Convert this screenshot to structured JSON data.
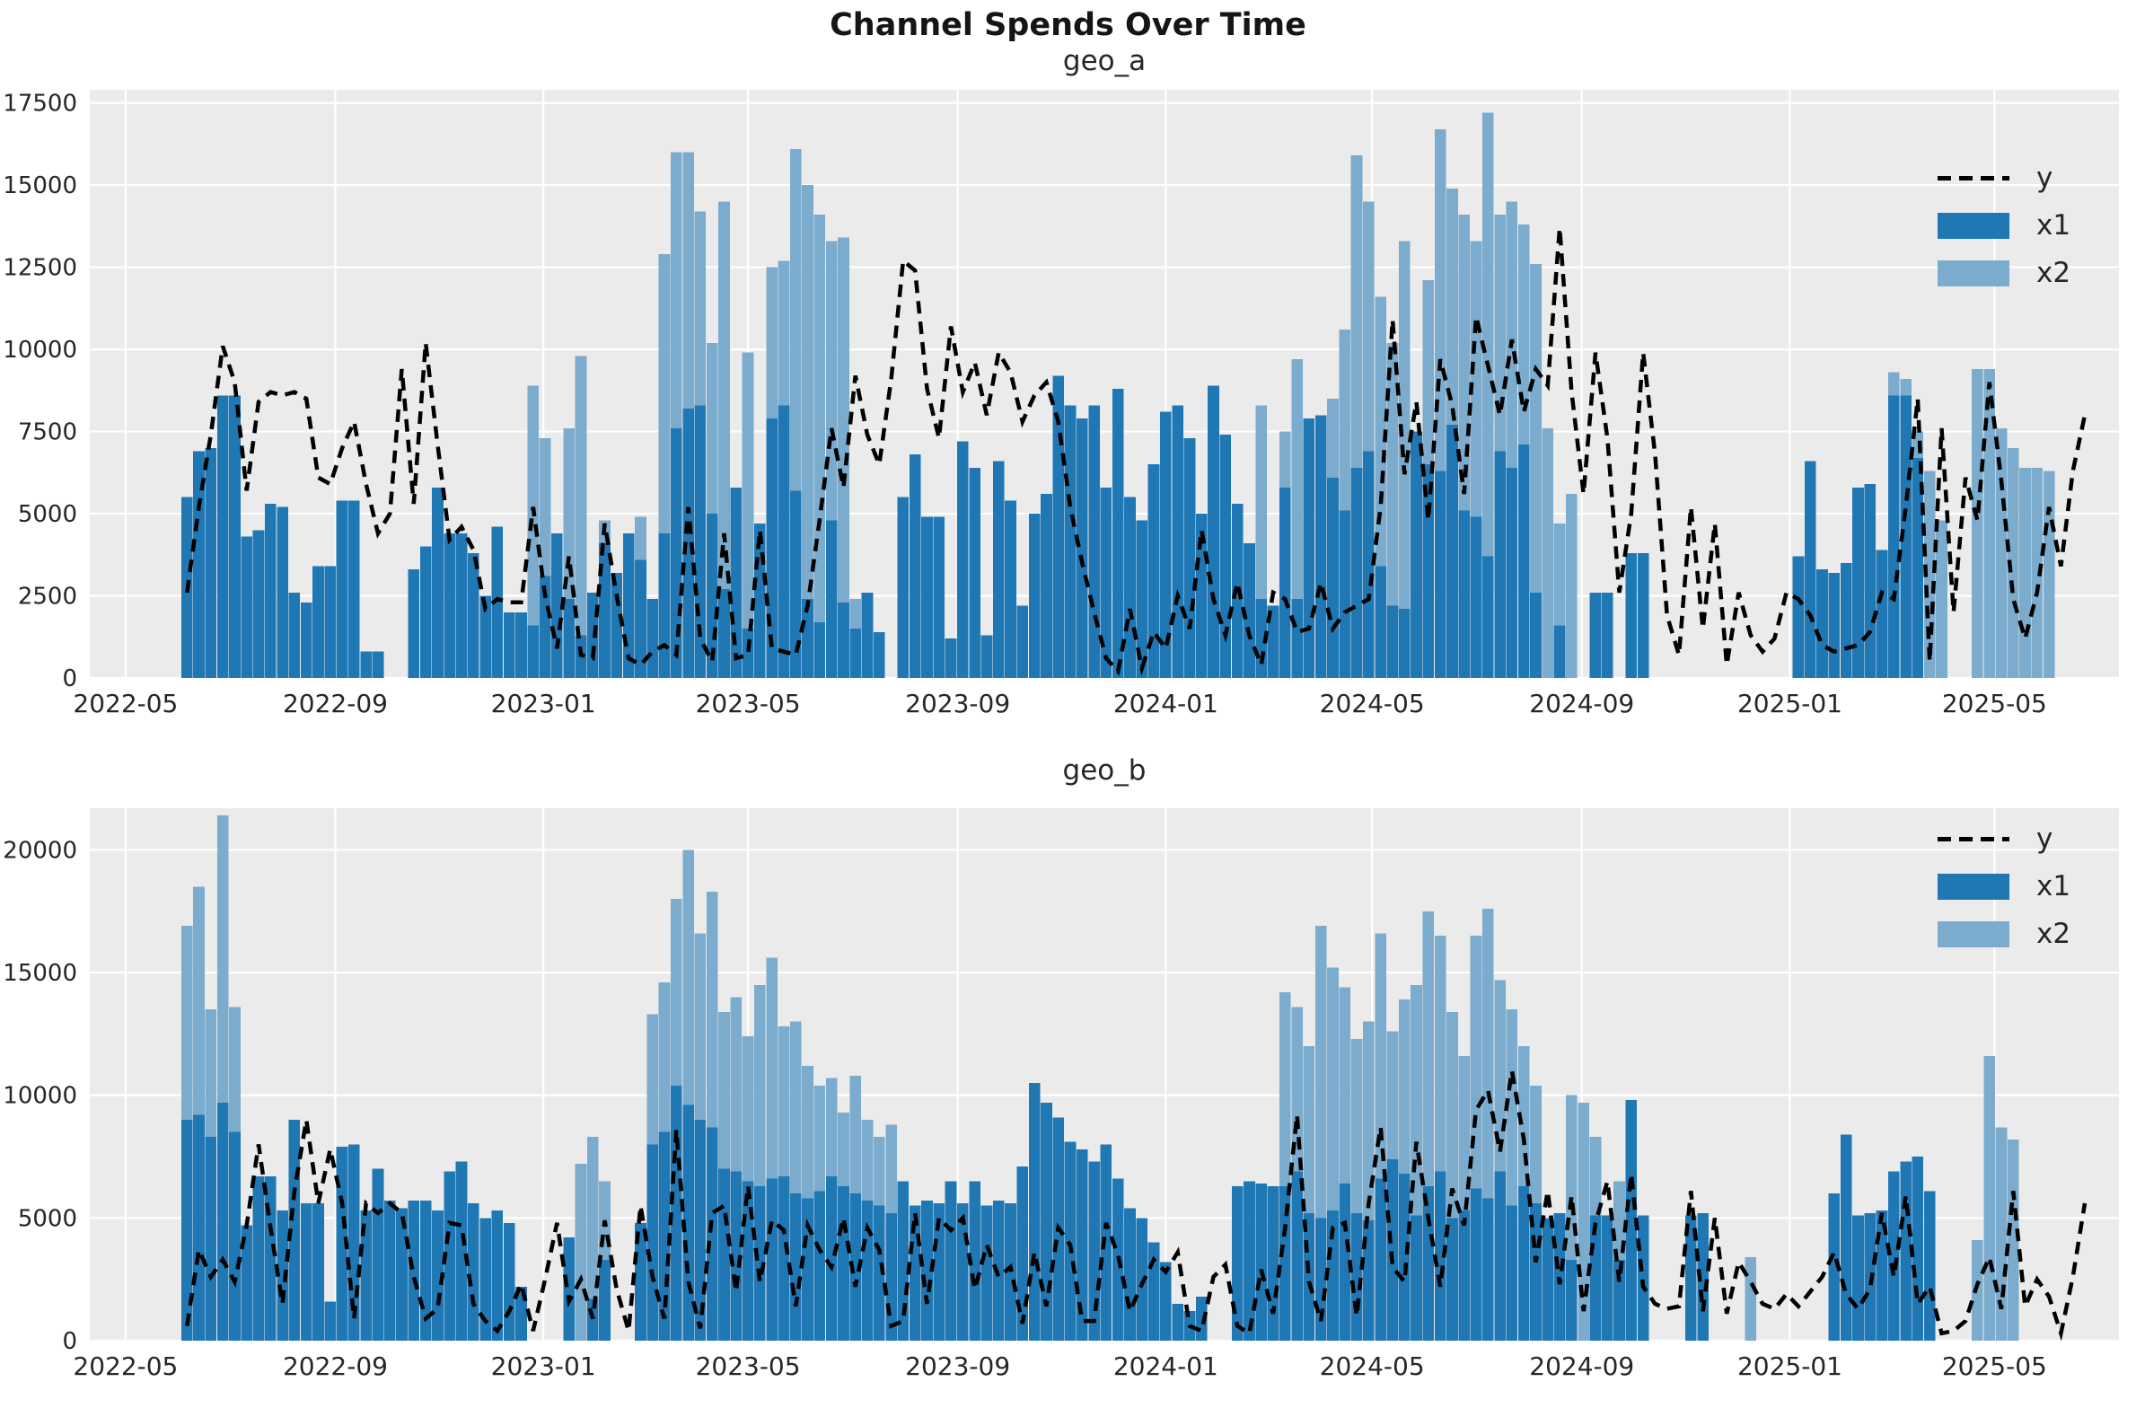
{
  "figure": {
    "title": "Channel Spends Over Time"
  },
  "colors": {
    "x1": "#1f77b4",
    "x2": "#7babcd",
    "line": "#000000",
    "plot_bg": "#ebebeb",
    "grid": "#ffffff",
    "tick_text": "#262626"
  },
  "legend": {
    "entries": [
      {
        "label": "y",
        "type": "line"
      },
      {
        "label": "x1",
        "type": "swatch"
      },
      {
        "label": "x2",
        "type": "swatch"
      }
    ]
  },
  "time_axis": {
    "domain_days": 1190,
    "bar_start_day": 57,
    "bar_step_days": 7,
    "weekly_start_date": "2022-06-06",
    "ticks": [
      {
        "label": "2022-05",
        "day": 21
      },
      {
        "label": "2022-09",
        "day": 144
      },
      {
        "label": "2023-01",
        "day": 266
      },
      {
        "label": "2023-05",
        "day": 386
      },
      {
        "label": "2023-09",
        "day": 509
      },
      {
        "label": "2024-01",
        "day": 631
      },
      {
        "label": "2024-05",
        "day": 752
      },
      {
        "label": "2024-09",
        "day": 875
      },
      {
        "label": "2025-01",
        "day": 997
      },
      {
        "label": "2025-05",
        "day": 1117
      }
    ]
  },
  "chart_data": [
    {
      "type": "bar",
      "title": "geo_a",
      "x_weekly_start": "2022-06-06",
      "ylim": [
        0,
        17900
      ],
      "yticks": [
        0,
        2500,
        5000,
        7500,
        10000,
        12500,
        15000,
        17500
      ],
      "grid": true,
      "legend_position": "upper right",
      "series": [
        {
          "name": "y",
          "type": "line",
          "values": [
            2600,
            5200,
            7400,
            10100,
            9000,
            5700,
            8400,
            8700,
            8600,
            8700,
            8500,
            6100,
            5900,
            7000,
            7800,
            5900,
            4400,
            5000,
            9400,
            5300,
            10200,
            7100,
            4200,
            4600,
            3900,
            2100,
            2400,
            2300,
            2300,
            5200,
            2500,
            900,
            3700,
            700,
            600,
            4700,
            2500,
            600,
            400,
            800,
            1000,
            700,
            5200,
            1200,
            500,
            4400,
            600,
            700,
            4500,
            900,
            800,
            700,
            2200,
            4800,
            7600,
            5800,
            9200,
            7400,
            6500,
            9100,
            12700,
            12400,
            8800,
            7300,
            10700,
            8700,
            9600,
            8000,
            9900,
            9300,
            7800,
            8600,
            9000,
            7800,
            5200,
            3500,
            2000,
            600,
            200,
            2100,
            300,
            1400,
            900,
            2500,
            1500,
            4500,
            2400,
            1300,
            2900,
            1300,
            400,
            2600,
            2400,
            1400,
            1500,
            2900,
            1500,
            2000,
            2200,
            2400,
            5200,
            10900,
            6200,
            8400,
            4800,
            9700,
            8300,
            5600,
            11000,
            9500,
            8000,
            10300,
            8100,
            9400,
            8900,
            13700,
            8700,
            5600,
            9900,
            7300,
            2600,
            5000,
            9900,
            6800,
            1900,
            700,
            5200,
            1500,
            4700,
            400,
            2600,
            1300,
            800,
            1200,
            2600,
            2400,
            1900,
            1000,
            800,
            900,
            1000,
            1400,
            2600,
            2400,
            5200,
            8500,
            500,
            7600,
            2000,
            6100,
            4800,
            9000,
            6000,
            2400,
            1200,
            2600,
            5200,
            3400,
            6300,
            8000
          ]
        },
        {
          "name": "x1",
          "type": "bar",
          "values": [
            5500,
            6900,
            7000,
            8600,
            8600,
            4300,
            4500,
            5300,
            5200,
            2600,
            2300,
            3400,
            3400,
            5400,
            5400,
            800,
            800,
            0,
            0,
            3300,
            4000,
            5800,
            4400,
            4400,
            3800,
            2500,
            4600,
            2000,
            2000,
            1600,
            3100,
            4400,
            2400,
            1300,
            2600,
            4100,
            3200,
            4400,
            3600,
            2400,
            4400,
            7600,
            8200,
            8300,
            5000,
            2700,
            5800,
            1500,
            4700,
            7900,
            8300,
            5700,
            2400,
            1700,
            4800,
            2300,
            1500,
            2600,
            1400,
            0,
            5500,
            6800,
            4900,
            4900,
            1200,
            7200,
            6400,
            1300,
            6600,
            5400,
            2200,
            5000,
            5600,
            9200,
            8300,
            7900,
            8300,
            5800,
            8800,
            5500,
            4800,
            6500,
            8100,
            8300,
            7300,
            5000,
            8900,
            7400,
            5300,
            4100,
            2400,
            2200,
            5800,
            2400,
            7900,
            8000,
            6100,
            5100,
            6400,
            6900,
            3400,
            2200,
            2100,
            7500,
            6500,
            6300,
            7700,
            5100,
            4900,
            3700,
            6900,
            6400,
            7100,
            2600,
            0,
            1600,
            0,
            0,
            2600,
            2600,
            0,
            3800,
            3800,
            0,
            0,
            0,
            0,
            0,
            0,
            0,
            0,
            0,
            0,
            0,
            0,
            3700,
            6600,
            3300,
            3200,
            3500,
            5800,
            5900,
            3900,
            8600,
            8600,
            6700,
            0,
            0,
            0,
            0,
            0,
            0,
            0,
            0,
            0,
            0,
            0,
            0,
            0,
            0
          ]
        },
        {
          "name": "x2",
          "type": "bar",
          "values": [
            0,
            0,
            0,
            0,
            0,
            0,
            0,
            0,
            0,
            0,
            0,
            0,
            0,
            0,
            0,
            0,
            0,
            0,
            0,
            0,
            0,
            0,
            0,
            0,
            0,
            0,
            0,
            0,
            0,
            8900,
            7300,
            0,
            7600,
            9800,
            0,
            4800,
            0,
            0,
            4900,
            0,
            12900,
            16000,
            16000,
            14200,
            10200,
            14500,
            0,
            9900,
            0,
            12500,
            12700,
            16100,
            15000,
            14100,
            13300,
            13400,
            2400,
            0,
            0,
            0,
            0,
            0,
            0,
            0,
            0,
            0,
            0,
            0,
            0,
            0,
            0,
            0,
            0,
            0,
            0,
            0,
            0,
            0,
            0,
            0,
            0,
            0,
            0,
            0,
            0,
            0,
            0,
            0,
            0,
            0,
            8300,
            0,
            7500,
            9700,
            0,
            5000,
            8500,
            10600,
            15900,
            14500,
            11600,
            10200,
            13300,
            6800,
            12100,
            16700,
            14900,
            14100,
            13300,
            17200,
            14100,
            14500,
            13800,
            12600,
            7600,
            4700,
            5600,
            0,
            0,
            0,
            0,
            0,
            0,
            0,
            0,
            0,
            0,
            0,
            0,
            0,
            0,
            0,
            0,
            0,
            0,
            0,
            0,
            0,
            0,
            0,
            0,
            0,
            0,
            9300,
            9100,
            7500,
            6300,
            4800,
            0,
            0,
            9400,
            9400,
            7600,
            7000,
            6400,
            6400,
            6300
          ]
        }
      ]
    },
    {
      "type": "bar",
      "title": "geo_b",
      "x_weekly_start": "2022-06-06",
      "ylim": [
        0,
        21700
      ],
      "yticks": [
        0,
        5000,
        10000,
        15000,
        20000
      ],
      "grid": true,
      "legend_position": "upper right",
      "series": [
        {
          "name": "y",
          "type": "line",
          "values": [
            600,
            3700,
            2600,
            3300,
            2400,
            4700,
            8000,
            4600,
            1500,
            6100,
            9000,
            5600,
            7800,
            5600,
            900,
            5600,
            5200,
            5600,
            5200,
            2600,
            900,
            1300,
            4800,
            4700,
            1500,
            800,
            400,
            1200,
            2300,
            400,
            2500,
            4800,
            1600,
            2500,
            900,
            4900,
            2100,
            400,
            5500,
            2600,
            900,
            8600,
            2400,
            500,
            5200,
            5500,
            2000,
            6300,
            2400,
            4900,
            4500,
            1400,
            4700,
            3700,
            3000,
            5000,
            2200,
            4600,
            3700,
            600,
            800,
            5200,
            1500,
            5000,
            4500,
            5000,
            2100,
            3900,
            2600,
            3000,
            700,
            3600,
            1400,
            4600,
            3900,
            800,
            800,
            4800,
            3500,
            1200,
            2300,
            3300,
            2800,
            3600,
            600,
            400,
            2600,
            3100,
            600,
            300,
            2900,
            1100,
            4600,
            9200,
            2400,
            800,
            4600,
            4800,
            1000,
            5600,
            8700,
            3000,
            2400,
            8100,
            5000,
            2200,
            6200,
            4700,
            9400,
            10200,
            7700,
            11000,
            8200,
            3200,
            6100,
            2300,
            5900,
            1200,
            4800,
            6500,
            2400,
            6800,
            2200,
            1500,
            1300,
            1400,
            6100,
            1200,
            5000,
            1100,
            3200,
            2400,
            1500,
            1300,
            1900,
            1400,
            2000,
            2600,
            3600,
            1900,
            1300,
            2100,
            5200,
            2600,
            5900,
            1500,
            2200,
            300,
            400,
            800,
            2300,
            3400,
            1300,
            6100,
            1400,
            2500,
            1800,
            300,
            2600,
            5600
          ]
        },
        {
          "name": "x1",
          "type": "bar",
          "values": [
            9000,
            9200,
            8300,
            9700,
            8500,
            4700,
            6700,
            6700,
            5300,
            9000,
            5600,
            5600,
            1600,
            7900,
            8000,
            5300,
            7000,
            5700,
            5400,
            5700,
            5700,
            5300,
            6900,
            7300,
            5600,
            5000,
            5300,
            4800,
            2200,
            0,
            0,
            0,
            4200,
            0,
            1700,
            3300,
            0,
            0,
            4800,
            8000,
            8500,
            10400,
            9600,
            9000,
            8700,
            7000,
            6900,
            6500,
            6300,
            6600,
            6700,
            6000,
            5800,
            6100,
            6700,
            6300,
            6000,
            5700,
            5500,
            5200,
            6500,
            5500,
            5700,
            5600,
            6500,
            5600,
            6500,
            5500,
            5700,
            5600,
            7100,
            10500,
            9700,
            9100,
            8100,
            7800,
            7300,
            8000,
            6600,
            5400,
            5000,
            4000,
            3200,
            1500,
            1200,
            1800,
            0,
            0,
            6300,
            6500,
            6400,
            6300,
            6300,
            6900,
            5200,
            5000,
            5300,
            6400,
            5200,
            4900,
            6600,
            7400,
            6800,
            5100,
            6300,
            6900,
            5000,
            5300,
            6200,
            5800,
            6900,
            5500,
            6300,
            5600,
            5000,
            5200,
            3300,
            0,
            5100,
            5100,
            3300,
            9800,
            5100,
            0,
            0,
            0,
            5100,
            5200,
            0,
            0,
            0,
            0,
            0,
            0,
            0,
            0,
            0,
            0,
            6000,
            8400,
            5100,
            5200,
            5300,
            6900,
            7300,
            7500,
            6100,
            0,
            0,
            0,
            0,
            0,
            0,
            0,
            0,
            0,
            0,
            0,
            0,
            0
          ]
        },
        {
          "name": "x2",
          "type": "bar",
          "values": [
            16900,
            18500,
            13500,
            21400,
            13600,
            0,
            0,
            0,
            0,
            0,
            0,
            0,
            0,
            0,
            0,
            0,
            0,
            0,
            0,
            0,
            0,
            0,
            0,
            0,
            0,
            0,
            0,
            0,
            0,
            0,
            0,
            0,
            0,
            7200,
            8300,
            6500,
            0,
            0,
            0,
            13300,
            14600,
            18000,
            20000,
            16600,
            18300,
            13400,
            14000,
            12400,
            14500,
            15600,
            12800,
            13000,
            11200,
            10400,
            10700,
            9300,
            10800,
            9000,
            8300,
            8800,
            0,
            0,
            0,
            0,
            0,
            0,
            0,
            0,
            0,
            0,
            0,
            0,
            0,
            0,
            0,
            0,
            0,
            0,
            0,
            0,
            0,
            0,
            0,
            0,
            0,
            0,
            0,
            0,
            0,
            0,
            0,
            0,
            14200,
            13600,
            12000,
            16900,
            15200,
            14400,
            12300,
            13000,
            16600,
            12600,
            13900,
            14500,
            17500,
            16500,
            13400,
            11600,
            16500,
            17600,
            14700,
            13500,
            12000,
            10400,
            0,
            0,
            10000,
            9700,
            8300,
            0,
            6500,
            6600,
            0,
            0,
            0,
            0,
            0,
            0,
            0,
            0,
            0,
            3400,
            0,
            0,
            0,
            0,
            0,
            0,
            0,
            0,
            0,
            0,
            0,
            0,
            0,
            0,
            0,
            0,
            0,
            0,
            4100,
            11600,
            8700,
            8200,
            0,
            0,
            0,
            0,
            0
          ]
        }
      ]
    }
  ]
}
